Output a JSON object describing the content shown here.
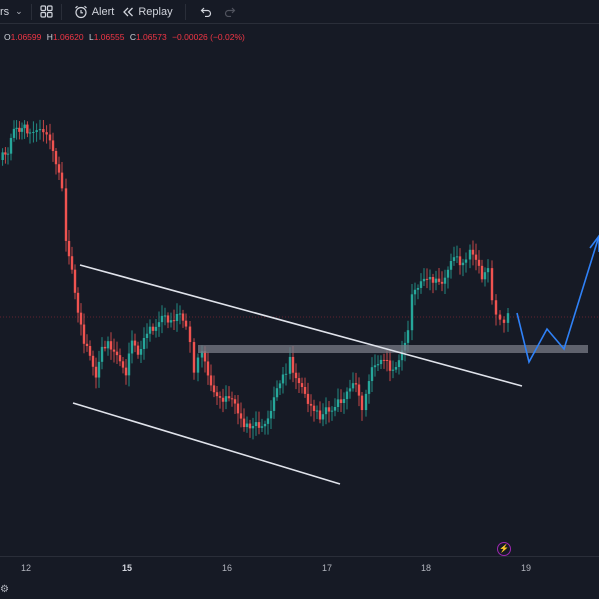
{
  "toolbar": {
    "indicators_label": "rs",
    "alert_label": "Alert",
    "replay_label": "Replay"
  },
  "ohlc": {
    "o_label": "O",
    "o_value": "1.06599",
    "h_label": "H",
    "h_value": "1.06620",
    "l_label": "L",
    "l_value": "1.06555",
    "c_label": "C",
    "c_value": "1.06573",
    "change": "−0.00026 (−0.02%)"
  },
  "xaxis": {
    "ticks": [
      "12",
      "15",
      "16",
      "17",
      "18",
      "19"
    ],
    "bold_tick": "15"
  },
  "colors": {
    "background": "#161a25",
    "up": "#26a69a",
    "down": "#ef5350",
    "channel_line": "#e0e3eb",
    "zone": "#787b86",
    "projection": "#2962ff"
  },
  "chart_data": {
    "type": "candlestick",
    "drawings": [
      "descending channel",
      "horizontal zone",
      "projected path"
    ]
  }
}
